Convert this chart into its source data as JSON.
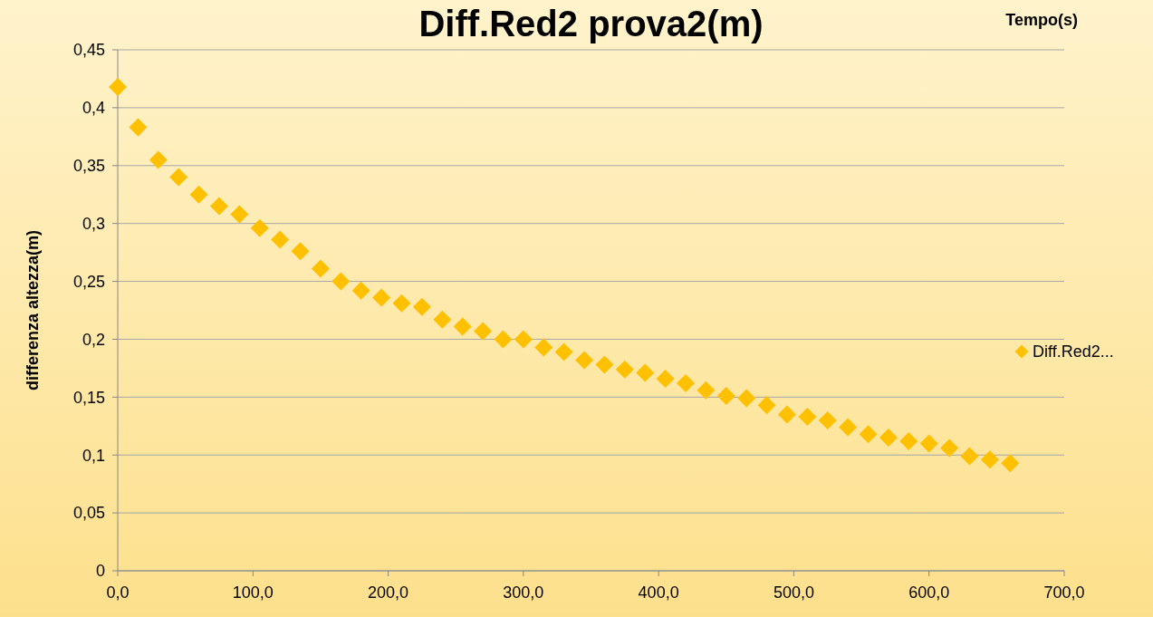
{
  "chart_data": {
    "type": "scatter",
    "title": "Diff.Red2 prova2(m)",
    "xlabel": "Tempo(s)",
    "ylabel": "differenza altezza(m)",
    "x": [
      0,
      15,
      30,
      45,
      60,
      75,
      90,
      105,
      120,
      135,
      150,
      165,
      180,
      195,
      210,
      225,
      240,
      255,
      270,
      285,
      300,
      315,
      330,
      345,
      360,
      375,
      390,
      405,
      420,
      435,
      450,
      465,
      480,
      495,
      510,
      525,
      540,
      555,
      570,
      585,
      600,
      615,
      630,
      645,
      660
    ],
    "series": [
      {
        "name": "Diff.Red2...",
        "color": "#ffc000",
        "values": [
          0.418,
          0.383,
          0.355,
          0.34,
          0.325,
          0.315,
          0.308,
          0.296,
          0.286,
          0.276,
          0.261,
          0.25,
          0.242,
          0.236,
          0.231,
          0.228,
          0.217,
          0.211,
          0.207,
          0.2,
          0.2,
          0.193,
          0.189,
          0.182,
          0.178,
          0.174,
          0.171,
          0.166,
          0.162,
          0.156,
          0.151,
          0.149,
          0.143,
          0.135,
          0.133,
          0.13,
          0.124,
          0.118,
          0.115,
          0.112,
          0.11,
          0.106,
          0.099,
          0.096,
          0.093
        ]
      }
    ],
    "xlim": [
      0,
      700
    ],
    "xticks": [
      {
        "value": 0,
        "label": "0,0"
      },
      {
        "value": 100,
        "label": "100,0"
      },
      {
        "value": 200,
        "label": "200,0"
      },
      {
        "value": 300,
        "label": "300,0"
      },
      {
        "value": 400,
        "label": "400,0"
      },
      {
        "value": 500,
        "label": "500,0"
      },
      {
        "value": 600,
        "label": "600,0"
      },
      {
        "value": 700,
        "label": "700,0"
      }
    ],
    "ylim": [
      0,
      0.45
    ],
    "yticks": [
      0,
      {
        "value": 0.05,
        "label": "0,05"
      },
      {
        "value": 0.1,
        "label": "0,1"
      },
      {
        "value": 0.15,
        "label": "0,15"
      },
      {
        "value": 0.2,
        "label": "0,2"
      },
      {
        "value": 0.25,
        "label": "0,25"
      },
      {
        "value": 0.3,
        "label": "0,3"
      },
      {
        "value": 0.35,
        "label": "0,35"
      },
      {
        "value": 0.4,
        "label": "0,4"
      },
      {
        "value": 0.45,
        "label": "0,45"
      }
    ],
    "grid": "y",
    "legend": "right",
    "marker": "diamond"
  }
}
